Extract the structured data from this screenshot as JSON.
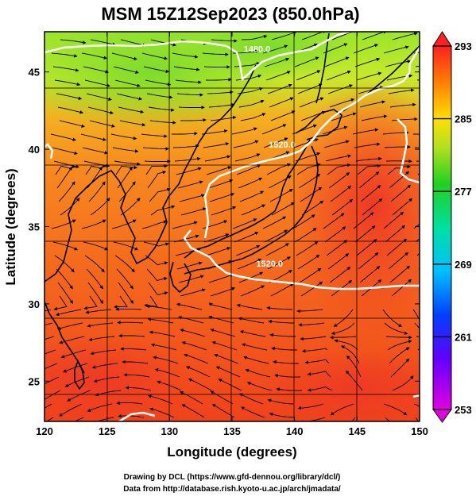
{
  "title": "MSM 15Z12Sep2023 (850.0hPa)",
  "xlabel": "Longitude (degrees)",
  "ylabel": "Latitude  (degrees)",
  "x_ticks": [
    "120",
    "125",
    "130",
    "135",
    "140",
    "145",
    "150"
  ],
  "y_ticks": [
    "25",
    "30",
    "35",
    "40",
    "45"
  ],
  "x_range": [
    120,
    150
  ],
  "y_range": [
    22.4,
    47.6
  ],
  "colorbar": {
    "ticks": [
      "293",
      "285",
      "277",
      "269",
      "261",
      "253"
    ],
    "range": [
      253,
      293
    ],
    "colors": [
      "#e000e0",
      "#3030ff",
      "#00c0ff",
      "#00e0a0",
      "#30d030",
      "#b0e020",
      "#ffe000",
      "#ff8000",
      "#ff3000",
      "#f03030"
    ]
  },
  "contours": [
    {
      "label": "1480.0",
      "lon": 137.0,
      "lat": 46.3
    },
    {
      "label": "1520.0",
      "lon": 139.0,
      "lat": 40.1
    },
    {
      "label": "1520.0",
      "lon": 138.0,
      "lat": 32.4
    }
  ],
  "credits": [
    "Drawing by DCL (https://www.gfd-dennou.org/library/dcl/)",
    "Data from http://database.rish.kyoto-u.ac.jp/arch/jmadata/"
  ]
}
